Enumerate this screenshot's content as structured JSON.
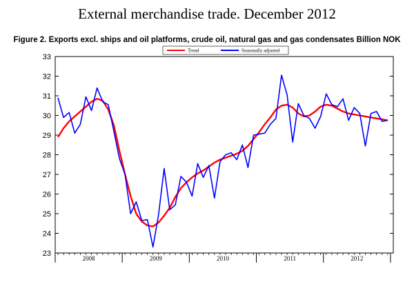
{
  "header": {
    "title": "External merchandise trade. December 2012",
    "subtitle": "Figure 2. Exports excl. ships and oil platforms, crude oil, natural gas and gas condensates Billion NOK"
  },
  "chart_data": {
    "type": "line",
    "title": "Figure 2. Exports excl. ships and oil platforms, crude oil, natural gas and gas condensates Billion NOK",
    "xlabel": "",
    "ylabel": "",
    "ylim": [
      23,
      33
    ],
    "yticks": [
      23,
      24,
      25,
      26,
      27,
      28,
      29,
      30,
      31,
      32,
      33
    ],
    "year_labels": [
      "2008",
      "2009",
      "2010",
      "2011",
      "2012"
    ],
    "x": [
      "2008-01",
      "2008-02",
      "2008-03",
      "2008-04",
      "2008-05",
      "2008-06",
      "2008-07",
      "2008-08",
      "2008-09",
      "2008-10",
      "2008-11",
      "2008-12",
      "2009-01",
      "2009-02",
      "2009-03",
      "2009-04",
      "2009-05",
      "2009-06",
      "2009-07",
      "2009-08",
      "2009-09",
      "2009-10",
      "2009-11",
      "2009-12",
      "2010-01",
      "2010-02",
      "2010-03",
      "2010-04",
      "2010-05",
      "2010-06",
      "2010-07",
      "2010-08",
      "2010-09",
      "2010-10",
      "2010-11",
      "2010-12",
      "2011-01",
      "2011-02",
      "2011-03",
      "2011-04",
      "2011-05",
      "2011-06",
      "2011-07",
      "2011-08",
      "2011-09",
      "2011-10",
      "2011-11",
      "2011-12",
      "2012-01",
      "2012-02",
      "2012-03",
      "2012-04",
      "2012-05",
      "2012-06",
      "2012-07",
      "2012-08",
      "2012-09",
      "2012-10",
      "2012-11",
      "2012-12"
    ],
    "series": [
      {
        "name": "Trend",
        "color": "#ff0000",
        "values": [
          28.9,
          29.35,
          29.7,
          29.95,
          30.2,
          30.45,
          30.7,
          30.85,
          30.75,
          30.3,
          29.5,
          28.2,
          27.0,
          25.9,
          25.0,
          24.6,
          24.4,
          24.35,
          24.55,
          24.9,
          25.3,
          25.85,
          26.3,
          26.6,
          26.85,
          27.05,
          27.2,
          27.4,
          27.6,
          27.75,
          27.85,
          27.95,
          28.05,
          28.2,
          28.45,
          28.8,
          29.15,
          29.55,
          29.9,
          30.3,
          30.5,
          30.55,
          30.4,
          30.1,
          29.95,
          30.0,
          30.2,
          30.45,
          30.55,
          30.5,
          30.35,
          30.2,
          30.1,
          30.05,
          30.0,
          29.95,
          29.9,
          29.85,
          29.8,
          29.75
        ]
      },
      {
        "name": "Seasonally adjusted",
        "color": "#0000ff",
        "values": [
          30.9,
          29.9,
          30.15,
          29.1,
          29.55,
          30.95,
          30.25,
          31.4,
          30.7,
          30.55,
          29.2,
          27.8,
          27.0,
          25.0,
          25.6,
          24.65,
          24.7,
          23.3,
          24.95,
          27.3,
          25.2,
          25.45,
          26.9,
          26.6,
          25.9,
          27.55,
          26.85,
          27.45,
          25.8,
          27.65,
          28.0,
          28.1,
          27.75,
          28.5,
          27.35,
          29.0,
          29.05,
          29.1,
          29.55,
          29.85,
          32.05,
          31.05,
          28.65,
          30.6,
          30.0,
          29.85,
          29.35,
          29.95,
          31.1,
          30.55,
          30.45,
          30.85,
          29.75,
          30.4,
          30.1,
          28.45,
          30.1,
          30.2,
          29.7,
          29.75
        ]
      }
    ],
    "legend": {
      "position": "top-center",
      "entries": [
        "Trend",
        "Seasonally adjusted"
      ]
    },
    "grid": false
  }
}
